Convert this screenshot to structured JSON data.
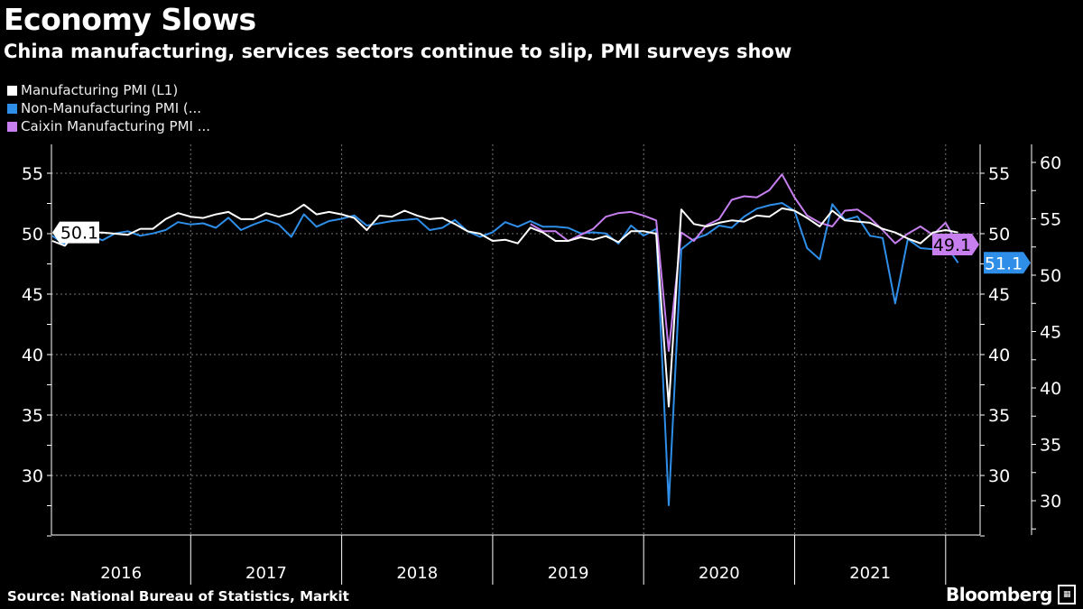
{
  "header": {
    "title": "Economy Slows",
    "subtitle": "China manufacturing, services sectors continue to slip, PMI surveys show"
  },
  "footer": {
    "source": "Source: National Bureau of Statistics, Markit",
    "logo": "Bloomberg"
  },
  "chart_data": {
    "type": "line",
    "title": "Economy Slows",
    "subtitle": "China manufacturing, services sectors continue to slip, PMI surveys show",
    "x_start": "2016-01",
    "x_end": "2022-01",
    "x_frequency": "monthly",
    "x_tick_labels": [
      "2016",
      "2017",
      "2018",
      "2019",
      "2020",
      "2021"
    ],
    "axes": {
      "left": {
        "ticks": [
          30,
          35,
          40,
          45,
          50,
          55
        ],
        "range": [
          25,
          57.3
        ]
      },
      "right_inner": {
        "ticks": [
          30,
          35,
          40,
          45,
          50,
          55
        ],
        "range": [
          25,
          57.3
        ]
      },
      "right_outer": {
        "ticks": [
          30,
          35,
          40,
          45,
          50,
          55,
          60
        ],
        "range": [
          26.6,
          61
        ]
      }
    },
    "grid": true,
    "legend_position": "top-left",
    "series": [
      {
        "name": "Manufacturing PMI (L1)",
        "color": "#ffffff",
        "axis": "left",
        "start": "2016-01",
        "last_label": "50.1",
        "values": [
          49.4,
          49.0,
          50.2,
          50.1,
          50.1,
          50.0,
          49.9,
          50.4,
          50.4,
          51.2,
          51.7,
          51.4,
          51.3,
          51.6,
          51.8,
          51.2,
          51.2,
          51.7,
          51.4,
          51.7,
          52.4,
          51.6,
          51.8,
          51.6,
          51.3,
          50.3,
          51.5,
          51.4,
          51.9,
          51.5,
          51.2,
          51.3,
          50.8,
          50.2,
          50.0,
          49.4,
          49.5,
          49.2,
          50.5,
          50.1,
          49.4,
          49.4,
          49.7,
          49.5,
          49.8,
          49.3,
          50.2,
          50.2,
          50.0,
          35.7,
          52.0,
          50.8,
          50.6,
          50.9,
          51.1,
          51.0,
          51.5,
          51.4,
          52.1,
          51.9,
          51.3,
          50.6,
          51.9,
          51.1,
          51.0,
          50.9,
          50.4,
          50.1,
          49.6,
          49.2,
          50.1,
          50.3,
          50.1
        ]
      },
      {
        "name": "Non-Manufacturing PMI (...",
        "color": "#2e8ee8",
        "axis": "right_outer",
        "start": "2016-01",
        "last_label": "51.1",
        "values": [
          53.5,
          52.7,
          53.8,
          53.5,
          53.1,
          53.7,
          53.9,
          53.5,
          53.7,
          54.0,
          54.7,
          54.5,
          54.6,
          54.2,
          55.1,
          54.0,
          54.5,
          54.9,
          54.5,
          53.4,
          55.4,
          54.3,
          54.8,
          55.0,
          55.3,
          54.4,
          54.6,
          54.8,
          54.9,
          55.0,
          54.0,
          54.2,
          54.9,
          53.9,
          53.4,
          53.8,
          54.7,
          54.3,
          54.8,
          54.3,
          54.3,
          54.2,
          53.7,
          53.8,
          53.7,
          52.8,
          54.4,
          53.5,
          54.1,
          29.6,
          52.3,
          53.2,
          53.6,
          54.4,
          54.2,
          55.2,
          55.9,
          56.2,
          56.4,
          55.7,
          52.4,
          51.4,
          56.3,
          54.9,
          55.2,
          53.5,
          53.3,
          47.5,
          53.2,
          52.4,
          52.3,
          52.7,
          51.1
        ]
      },
      {
        "name": "Caixin Manufacturing PMI ...",
        "color": "#c77ff0",
        "axis": "right_inner",
        "start": "2019-03",
        "last_label": "49.1",
        "values": [
          50.8,
          50.2,
          50.2,
          49.4,
          49.9,
          50.4,
          51.4,
          51.7,
          51.8,
          51.5,
          51.1,
          40.3,
          50.1,
          49.4,
          50.7,
          51.2,
          52.8,
          53.1,
          53.0,
          53.6,
          54.9,
          53.0,
          51.5,
          50.9,
          50.6,
          51.9,
          52.0,
          51.3,
          50.3,
          49.2,
          50.0,
          50.6,
          49.9,
          50.9,
          49.1
        ]
      }
    ]
  }
}
